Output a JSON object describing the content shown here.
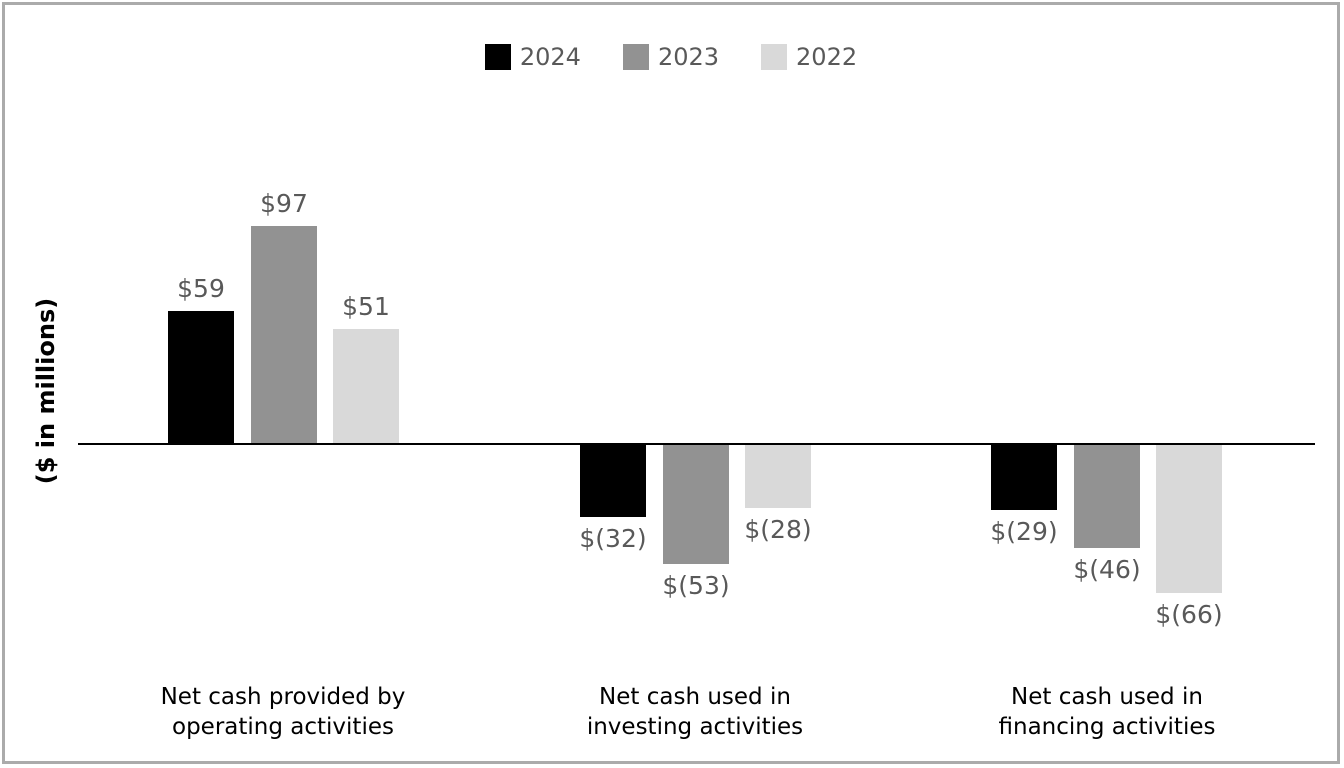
{
  "chart_data": {
    "type": "bar",
    "title": "",
    "xlabel": "",
    "ylabel": "($ in millions)",
    "categories": [
      "Net cash provided by\noperating activities",
      "Net cash used in\ninvesting activities",
      "Net cash used in\nfinancing activities"
    ],
    "series": [
      {
        "name": "2024",
        "color": "#000000",
        "values": [
          59,
          -32,
          -29
        ],
        "labels": [
          "$59",
          "$(32)",
          "$(29)"
        ]
      },
      {
        "name": "2023",
        "color": "#929292",
        "values": [
          97,
          -53,
          -46
        ],
        "labels": [
          "$97",
          "$(53)",
          "$(46)"
        ]
      },
      {
        "name": "2022",
        "color": "#D9D9D9",
        "values": [
          51,
          -28,
          -66
        ],
        "labels": [
          "$51",
          "$(28)",
          "$(66)"
        ]
      }
    ],
    "ylim": [
      -80,
      110
    ],
    "grid": false,
    "legend_position": "top",
    "value_label_color": "#595959",
    "axis_color": "#000000"
  },
  "frame": {
    "border_color": "#ABABAB",
    "background": "#FFFFFF"
  }
}
